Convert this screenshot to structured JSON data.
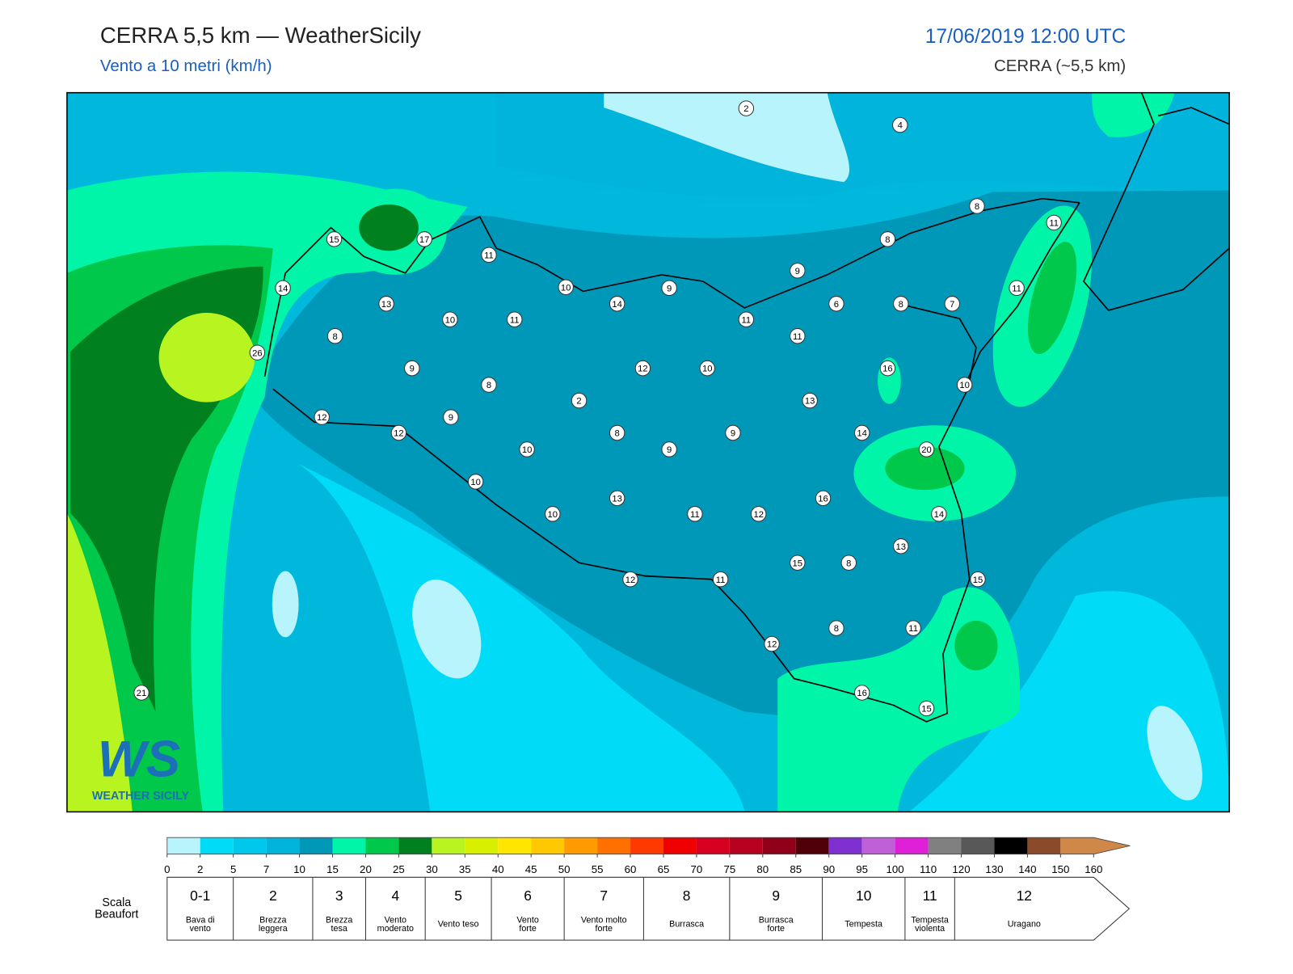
{
  "header": {
    "title": "CERRA 5,5 km — WeatherSicily",
    "subtitle": "Vento a 10 metri (km/h)",
    "datetime": "17/06/2019 12:00 UTC",
    "model": "CERRA (~5,5 km)"
  },
  "map": {
    "labels": [
      2,
      4,
      8,
      11,
      15,
      17,
      11,
      8,
      9,
      14,
      10,
      9,
      11,
      13,
      14,
      6,
      8,
      7,
      10,
      11,
      11,
      8,
      11,
      26,
      9,
      12,
      10,
      16,
      8,
      10,
      2,
      13,
      9,
      12,
      12,
      8,
      9,
      14,
      10,
      9,
      20,
      10,
      13,
      16,
      10,
      11,
      12,
      14,
      13,
      15,
      8,
      12,
      11,
      15,
      8,
      11,
      12,
      16,
      15,
      21
    ]
  },
  "logo": {
    "mark": "WS",
    "text": "WEATHER SICILY"
  },
  "colorbar": {
    "ticks": [
      0,
      2,
      5,
      7,
      10,
      15,
      20,
      25,
      30,
      35,
      40,
      45,
      50,
      55,
      60,
      65,
      70,
      75,
      80,
      85,
      90,
      95,
      100,
      110,
      120,
      130,
      140,
      150,
      160
    ],
    "colors": [
      "#b8f4fb",
      "#00dcf8",
      "#00c8ec",
      "#00b4dc",
      "#0098b8",
      "#00f5a8",
      "#00c84a",
      "#00801e",
      "#b8f520",
      "#d8f000",
      "#ffe600",
      "#ffc800",
      "#ff9a00",
      "#ff7000",
      "#ff3a00",
      "#f00000",
      "#d80020",
      "#b80020",
      "#900018",
      "#500008",
      "#8030d0",
      "#c060d8",
      "#e020d8",
      "#808080",
      "#585858",
      "#000000",
      "#8b4a2a",
      "#d08848"
    ]
  },
  "beaufort": {
    "title": [
      "Scala",
      "Beaufort"
    ],
    "levels": [
      {
        "force": "0-1",
        "label": [
          "Bava di",
          "vento"
        ]
      },
      {
        "force": "2",
        "label": [
          "Brezza",
          "leggera"
        ]
      },
      {
        "force": "3",
        "label": [
          "Brezza",
          "tesa"
        ]
      },
      {
        "force": "4",
        "label": [
          "Vento",
          "moderato"
        ]
      },
      {
        "force": "5",
        "label": [
          "Vento teso"
        ]
      },
      {
        "force": "6",
        "label": [
          "Vento",
          "forte"
        ]
      },
      {
        "force": "7",
        "label": [
          "Vento molto",
          "forte"
        ]
      },
      {
        "force": "8",
        "label": [
          "Burrasca"
        ]
      },
      {
        "force": "9",
        "label": [
          "Burrasca",
          "forte"
        ]
      },
      {
        "force": "10",
        "label": [
          "Tempesta"
        ]
      },
      {
        "force": "11",
        "label": [
          "Tempesta",
          "violenta"
        ]
      },
      {
        "force": "12",
        "label": [
          "Uragano"
        ]
      }
    ]
  }
}
